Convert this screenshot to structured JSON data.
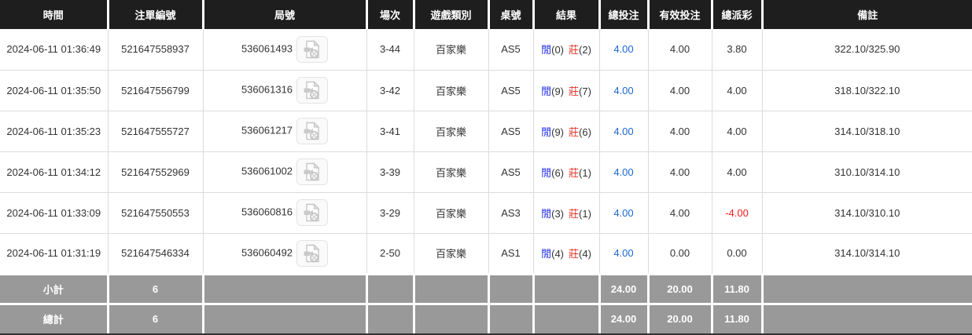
{
  "colors": {
    "header_bg": "#1e1e1e",
    "header_text": "#ffffff",
    "border": "#dcdcdc",
    "body_text": "#333333",
    "player_blue": "#1f2ce6",
    "banker_red": "#e5342a",
    "total_bet_blue": "#1a66d0",
    "negative_red": "#ff1a1a",
    "summary_bg": "#999999",
    "summary_text": "#ffffff",
    "page_bg": "#333333"
  },
  "table": {
    "headers": [
      "時間",
      "注單編號",
      "局號",
      "場次",
      "遊戲類別",
      "桌號",
      "結果",
      "總投注",
      "有效投注",
      "總派彩",
      "備註"
    ],
    "video_icon": "video-file-icon",
    "rows": [
      {
        "time": "2024-06-11 01:36:49",
        "bet_id": "521647558937",
        "round_id": "536061493",
        "session": "3-44",
        "game_type": "百家樂",
        "table_id": "AS5",
        "result_player": "閒",
        "result_player_count": "(0)",
        "result_banker": "莊",
        "result_banker_count": "(2)",
        "total_bet": "4.00",
        "valid_bet": "4.00",
        "total_payout": "3.80",
        "remark": "322.10/325.90"
      },
      {
        "time": "2024-06-11 01:35:50",
        "bet_id": "521647556799",
        "round_id": "536061316",
        "session": "3-42",
        "game_type": "百家樂",
        "table_id": "AS5",
        "result_player": "閒",
        "result_player_count": "(9)",
        "result_banker": "莊",
        "result_banker_count": "(7)",
        "total_bet": "4.00",
        "valid_bet": "4.00",
        "total_payout": "4.00",
        "remark": "318.10/322.10"
      },
      {
        "time": "2024-06-11 01:35:23",
        "bet_id": "521647555727",
        "round_id": "536061217",
        "session": "3-41",
        "game_type": "百家樂",
        "table_id": "AS5",
        "result_player": "閒",
        "result_player_count": "(9)",
        "result_banker": "莊",
        "result_banker_count": "(6)",
        "total_bet": "4.00",
        "valid_bet": "4.00",
        "total_payout": "4.00",
        "remark": "314.10/318.10"
      },
      {
        "time": "2024-06-11 01:34:12",
        "bet_id": "521647552969",
        "round_id": "536061002",
        "session": "3-39",
        "game_type": "百家樂",
        "table_id": "AS5",
        "result_player": "閒",
        "result_player_count": "(6)",
        "result_banker": "莊",
        "result_banker_count": "(1)",
        "total_bet": "4.00",
        "valid_bet": "4.00",
        "total_payout": "4.00",
        "remark": "310.10/314.10"
      },
      {
        "time": "2024-06-11 01:33:09",
        "bet_id": "521647550553",
        "round_id": "536060816",
        "session": "3-29",
        "game_type": "百家樂",
        "table_id": "AS3",
        "result_player": "閒",
        "result_player_count": "(3)",
        "result_banker": "莊",
        "result_banker_count": "(1)",
        "total_bet": "4.00",
        "valid_bet": "4.00",
        "total_payout": "-4.00",
        "remark": "314.10/310.10"
      },
      {
        "time": "2024-06-11 01:31:19",
        "bet_id": "521647546334",
        "round_id": "536060492",
        "session": "2-50",
        "game_type": "百家樂",
        "table_id": "AS1",
        "result_player": "閒",
        "result_player_count": "(4)",
        "result_banker": "莊",
        "result_banker_count": "(4)",
        "total_bet": "4.00",
        "valid_bet": "0.00",
        "total_payout": "0.00",
        "remark": "314.10/314.10"
      }
    ],
    "subtotal": {
      "label": "小計",
      "count": "6",
      "total_bet": "24.00",
      "valid_bet": "20.00",
      "total_payout": "11.80"
    },
    "grand_total": {
      "label": "總計",
      "count": "6",
      "total_bet": "24.00",
      "valid_bet": "20.00",
      "total_payout": "11.80"
    }
  }
}
